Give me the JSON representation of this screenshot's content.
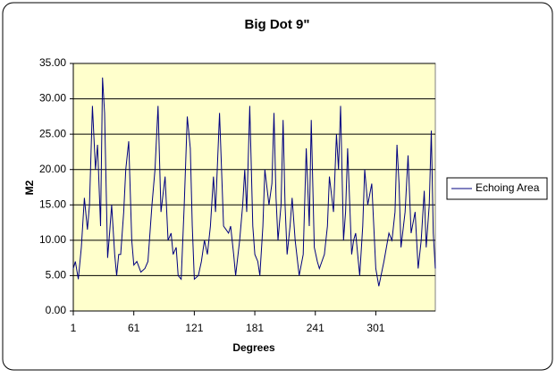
{
  "chart_data": {
    "type": "line",
    "title": "Big Dot 9\"",
    "xlabel": "Degrees",
    "ylabel": "M2",
    "x": [
      1,
      3,
      6,
      9,
      12,
      15,
      17,
      20,
      23,
      25,
      28,
      30,
      32,
      35,
      37,
      39,
      42,
      44,
      46,
      48,
      51,
      53,
      56,
      59,
      61,
      64,
      68,
      72,
      75,
      79,
      82,
      85,
      88,
      92,
      95,
      98,
      100,
      103,
      105,
      108,
      111,
      114,
      117,
      119,
      121,
      125,
      128,
      131,
      134,
      137,
      140,
      142,
      146,
      150,
      155,
      157,
      160,
      162,
      166,
      169,
      171,
      173,
      176,
      179,
      181,
      184,
      186,
      189,
      191,
      195,
      198,
      200,
      202,
      204,
      207,
      209,
      211,
      213,
      216,
      218,
      221,
      225,
      229,
      232,
      235,
      237,
      240,
      243,
      245,
      250,
      253,
      255,
      259,
      262,
      264,
      266,
      269,
      271,
      273,
      277,
      279,
      281,
      285,
      288,
      290,
      293,
      297,
      301,
      304,
      309,
      314,
      317,
      320,
      322,
      324,
      326,
      330,
      333,
      336,
      340,
      343,
      346,
      349,
      351,
      354,
      356,
      358,
      360
    ],
    "series": [
      {
        "name": "Echoing Area",
        "color": "#000080",
        "values": [
          6,
          7,
          4.5,
          9,
          16,
          11.5,
          15,
          29,
          20,
          23.5,
          12,
          33,
          28,
          7.5,
          11,
          15,
          8,
          5,
          8,
          8,
          14,
          20,
          24,
          10,
          6.5,
          7,
          5.5,
          6,
          7,
          15,
          20,
          29,
          14,
          19,
          10,
          11,
          8,
          9,
          5,
          4.5,
          15,
          27.5,
          23,
          12,
          4.5,
          5,
          7,
          10,
          8,
          12,
          19,
          14,
          28,
          12,
          11,
          12,
          8,
          5,
          10,
          15,
          20,
          14,
          29,
          12,
          8,
          7,
          5,
          12,
          20,
          15,
          18,
          28,
          16,
          10,
          15,
          27,
          15,
          8,
          12,
          16,
          10,
          5,
          8,
          23,
          12,
          27,
          9,
          7,
          6,
          8,
          12,
          19,
          14,
          25,
          20,
          29,
          10,
          14,
          23,
          8,
          10,
          11,
          5,
          12,
          20,
          15,
          18,
          6,
          3.5,
          7,
          11,
          10,
          14,
          23.5,
          18,
          9,
          14,
          22,
          11,
          14,
          6,
          10,
          17,
          9,
          15,
          25.5,
          11,
          6
        ]
      }
    ],
    "xlim": [
      1,
      360
    ],
    "xticks": [
      1,
      61,
      121,
      181,
      241,
      301
    ],
    "ylim": [
      0,
      35
    ],
    "yticks": [
      {
        "value": 0,
        "label": "0.00"
      },
      {
        "value": 5,
        "label": "5.00"
      },
      {
        "value": 10,
        "label": "10.00"
      },
      {
        "value": 15,
        "label": "15.00"
      },
      {
        "value": 20,
        "label": "20.00"
      },
      {
        "value": 25,
        "label": "25.00"
      },
      {
        "value": 30,
        "label": "30.00"
      },
      {
        "value": 35,
        "label": "35.00"
      }
    ],
    "grid": true,
    "legend": "right"
  }
}
